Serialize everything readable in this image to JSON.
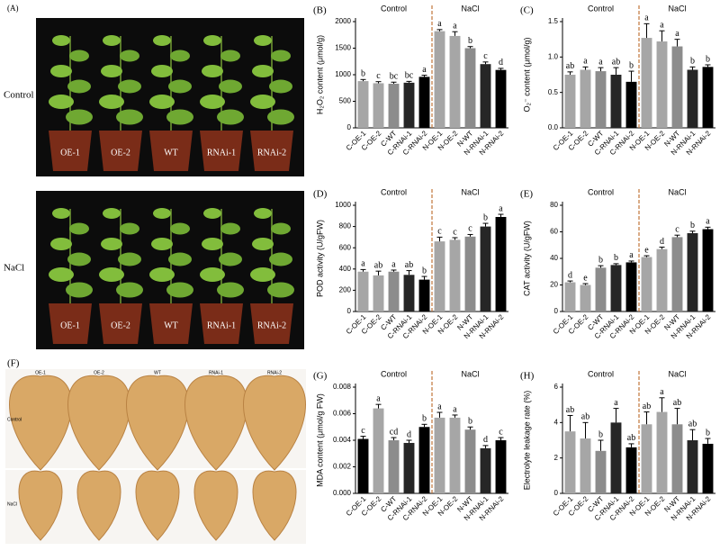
{
  "photos": {
    "plants": {
      "label": "(A)",
      "rows": [
        "Control",
        "NaCl"
      ],
      "pots": [
        "OE-1",
        "OE-2",
        "WT",
        "RNAi-1",
        "RNAi-2"
      ]
    },
    "leaves": {
      "label": "(F)",
      "rows": [
        "Control",
        "NaCl"
      ],
      "cols": [
        "OE-1",
        "OE-2",
        "WT",
        "RNAi-1",
        "RNAi-2"
      ]
    }
  },
  "chart_data": [
    {
      "type": "bar",
      "label": "(B)",
      "ylabel": "H₂O₂ content (μmol/g)",
      "groups": [
        "Control",
        "NaCl"
      ],
      "categories": [
        "C-OE-1",
        "C-OE-2",
        "C-WT",
        "C-RNAi-1",
        "C-RNAi-2",
        "N-OE-1",
        "N-OE-2",
        "N-WT",
        "N-RNAi-1",
        "N-RNAi-2"
      ],
      "values": [
        880,
        840,
        830,
        850,
        960,
        1820,
        1730,
        1500,
        1200,
        1090
      ],
      "errors": [
        30,
        30,
        30,
        25,
        30,
        30,
        80,
        30,
        40,
        30
      ],
      "letters": [
        "b",
        "c",
        "bc",
        "bc",
        "a",
        "a",
        "a",
        "b",
        "c",
        "d"
      ],
      "colors": [
        "#a6a6a6",
        "#a6a6a6",
        "#8c8c8c",
        "#262626",
        "#000000",
        "#a6a6a6",
        "#a6a6a6",
        "#8c8c8c",
        "#262626",
        "#000000"
      ],
      "ylim": [
        0,
        2000
      ],
      "yticks": [
        0,
        500,
        1000,
        1500,
        2000
      ]
    },
    {
      "type": "bar",
      "label": "(C)",
      "ylabel": "O₂⁻ content (μmol/g)",
      "groups": [
        "Control",
        "NaCl"
      ],
      "categories": [
        "C-OE-1",
        "C-OE-2",
        "C-WT",
        "C-RNAi-1",
        "C-RNAi-2",
        "N-OE-1",
        "N-OE-2",
        "N-WT",
        "N-RNAi-1",
        "N-RNAi-2"
      ],
      "values": [
        0.75,
        0.82,
        0.8,
        0.75,
        0.65,
        1.27,
        1.22,
        1.15,
        0.82,
        0.86
      ],
      "errors": [
        0.04,
        0.04,
        0.05,
        0.1,
        0.15,
        0.2,
        0.15,
        0.1,
        0.04,
        0.03
      ],
      "letters": [
        "ab",
        "a",
        "a",
        "ab",
        "b",
        "a",
        "a",
        "a",
        "b",
        "b"
      ],
      "colors": [
        "#a6a6a6",
        "#a6a6a6",
        "#8c8c8c",
        "#262626",
        "#000000",
        "#a6a6a6",
        "#a6a6a6",
        "#8c8c8c",
        "#262626",
        "#000000"
      ],
      "ylim": [
        0,
        1.5
      ],
      "yticks": [
        {
          "value": 0,
          "label": "0.0"
        },
        0.5,
        {
          "value": 1,
          "label": "1.0"
        },
        1.5
      ]
    },
    {
      "type": "bar",
      "label": "(D)",
      "ylabel": "POD activity (U/gFW)",
      "groups": [
        "Control",
        "NaCl"
      ],
      "categories": [
        "C-OE-1",
        "C-OE-2",
        "C-WT",
        "C-RNAi-1",
        "C-RNAi-2",
        "N-OE-1",
        "N-OE-2",
        "N-WT",
        "N-RNAi-1",
        "N-RNAi-2"
      ],
      "values": [
        375,
        340,
        375,
        345,
        300,
        660,
        675,
        705,
        800,
        890
      ],
      "errors": [
        20,
        40,
        15,
        40,
        30,
        40,
        20,
        20,
        30,
        25
      ],
      "letters": [
        "a",
        "ab",
        "a",
        "ab",
        "b",
        "c",
        "c",
        "c",
        "b",
        "a"
      ],
      "colors": [
        "#a6a6a6",
        "#a6a6a6",
        "#8c8c8c",
        "#262626",
        "#000000",
        "#a6a6a6",
        "#a6a6a6",
        "#8c8c8c",
        "#262626",
        "#000000"
      ],
      "ylim": [
        0,
        1000
      ],
      "yticks": [
        0,
        200,
        400,
        600,
        800,
        1000
      ]
    },
    {
      "type": "bar",
      "label": "(E)",
      "ylabel": "CAT activity (U/gFW)",
      "groups": [
        "Control",
        "NaCl"
      ],
      "categories": [
        "C-OE-1",
        "C-OE-2",
        "C-WT",
        "C-RNAi-1",
        "C-RNAi-2",
        "N-OE-1",
        "N-OE-2",
        "N-WT",
        "N-RNAi-1",
        "N-RNAi-2"
      ],
      "values": [
        22,
        20,
        33,
        35,
        37,
        41,
        47,
        56,
        59,
        62
      ],
      "errors": [
        1,
        1,
        1.5,
        1,
        1,
        1,
        1.5,
        1.5,
        1.5,
        1.5
      ],
      "letters": [
        "d",
        "e",
        "b",
        "b",
        "a",
        "e",
        "d",
        "c",
        "b",
        "a"
      ],
      "colors": [
        "#a6a6a6",
        "#a6a6a6",
        "#8c8c8c",
        "#262626",
        "#000000",
        "#a6a6a6",
        "#a6a6a6",
        "#8c8c8c",
        "#262626",
        "#000000"
      ],
      "ylim": [
        0,
        80
      ],
      "yticks": [
        0,
        20,
        40,
        60,
        80
      ]
    },
    {
      "type": "bar",
      "label": "(G)",
      "ylabel": "MDA content (μmol/g FW)",
      "groups": [
        "Control",
        "NaCl"
      ],
      "categories": [
        "C-OE-1",
        "C-OE-2",
        "C-WT",
        "C-RNAi-1",
        "C-RNAi-2",
        "N-OE-1",
        "N-OE-2",
        "N-WT",
        "N-RNAi-1",
        "N-RNAi-2"
      ],
      "values": [
        0.0041,
        0.0064,
        0.004,
        0.0038,
        0.005,
        0.0057,
        0.0057,
        0.0048,
        0.0034,
        0.004
      ],
      "errors": [
        0.0002,
        0.0003,
        0.0002,
        0.0002,
        0.0002,
        0.0004,
        0.0002,
        0.0002,
        0.0002,
        0.0002
      ],
      "letters": [
        "c",
        "a",
        "cd",
        "d",
        "b",
        "a",
        "a",
        "b",
        "d",
        "c"
      ],
      "colors": [
        "#000000",
        "#a6a6a6",
        "#8c8c8c",
        "#262626",
        "#000000",
        "#a6a6a6",
        "#a6a6a6",
        "#8c8c8c",
        "#262626",
        "#000000"
      ],
      "ylim": [
        0,
        0.008
      ],
      "yticks": [
        {
          "value": 0,
          "label": "0.000"
        },
        {
          "value": 0.002,
          "label": "0.002"
        },
        {
          "value": 0.004,
          "label": "0.004"
        },
        {
          "value": 0.006,
          "label": "0.006"
        },
        {
          "value": 0.008,
          "label": "0.008"
        }
      ]
    },
    {
      "type": "bar",
      "label": "(H)",
      "ylabel": "Electrolyte leakage rate (%)",
      "groups": [
        "Control",
        "NaCl"
      ],
      "categories": [
        "C-OE-1",
        "C-OE-2",
        "C-WT",
        "C-RNAi-1",
        "C-RNAi-2",
        "N-OE-1",
        "N-OE-2",
        "N-WT",
        "N-RNAi-1",
        "N-RNAi-2"
      ],
      "values": [
        3.5,
        3.1,
        2.4,
        4.0,
        2.6,
        3.9,
        4.6,
        3.9,
        3.0,
        2.8
      ],
      "errors": [
        0.9,
        0.9,
        0.6,
        0.8,
        0.2,
        0.7,
        0.8,
        0.9,
        0.6,
        0.3
      ],
      "letters": [
        "ab",
        "ab",
        "b",
        "a",
        "ab",
        "ab",
        "a",
        "ab",
        "ab",
        "b"
      ],
      "colors": [
        "#a6a6a6",
        "#a6a6a6",
        "#8c8c8c",
        "#262626",
        "#000000",
        "#a6a6a6",
        "#a6a6a6",
        "#8c8c8c",
        "#262626",
        "#000000"
      ],
      "ylim": [
        0,
        6
      ],
      "yticks": [
        0,
        2,
        4,
        6
      ]
    }
  ]
}
